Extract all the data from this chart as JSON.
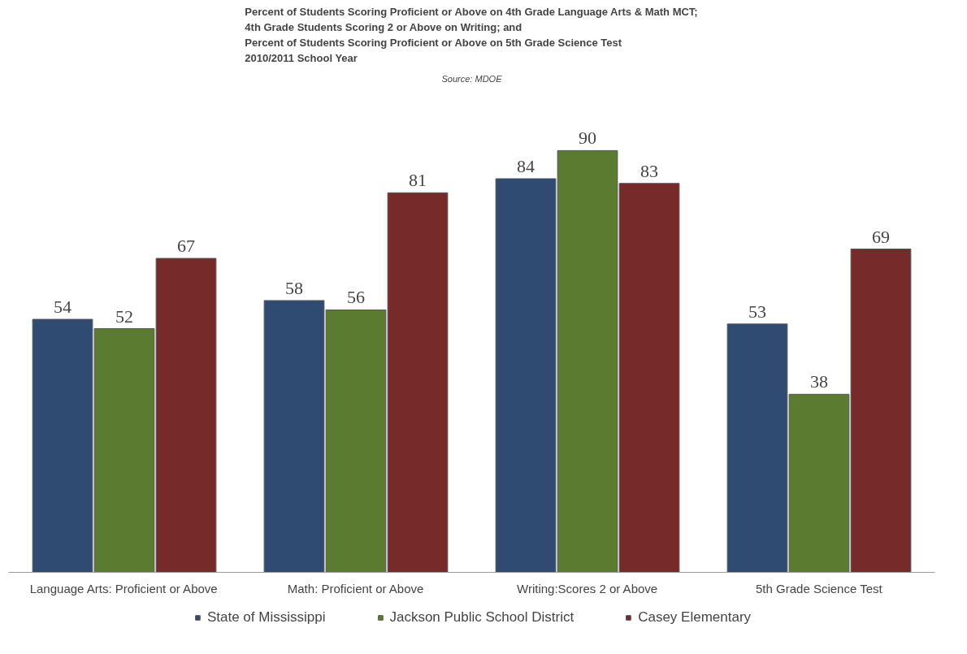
{
  "chart_data": {
    "type": "bar",
    "title": "Percent of Students Scoring Proficient or Above on 4th Grade Language Arts & Math MCT;\n4th Grade Students Scoring 2 or Above on Writing; and\nPercent of Students Scoring Proficient or Above on 5th Grade Science Test\n2010/2011 School Year",
    "annotations": [
      "Source: MDOE"
    ],
    "categories": [
      "Language Arts: Proficient or Above",
      "Math: Proficient or Above",
      "Writing:Scores 2 or Above",
      "5th Grade Science Test"
    ],
    "series": [
      {
        "name": "State of Mississippi",
        "color": "#2f4b72",
        "values": [
          54,
          58,
          84,
          53
        ]
      },
      {
        "name": "Jackson Public School District",
        "color": "#5b7b31",
        "values": [
          52,
          56,
          90,
          38
        ]
      },
      {
        "name": "Casey Elementary",
        "color": "#762a2a",
        "values": [
          67,
          81,
          83,
          69
        ]
      }
    ],
    "data_labels": true,
    "grid": false,
    "legend": "bottom"
  }
}
